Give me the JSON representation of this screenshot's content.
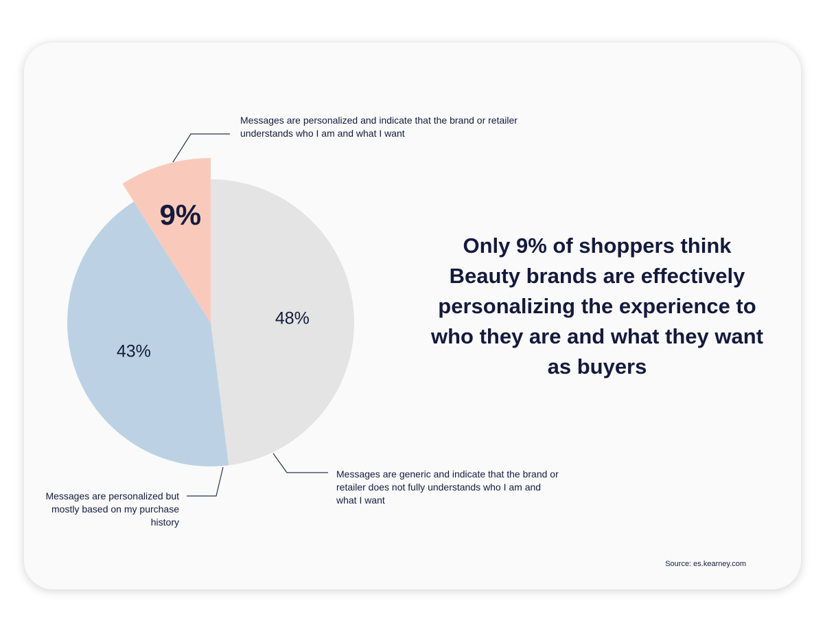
{
  "chart_data": {
    "type": "pie",
    "title": "Only 9% of shoppers think Beauty brands are effectively personalizing the experience to who they are and what they want as buyers",
    "slices": [
      {
        "label": "Messages are generic and indicate that the brand or retailer does not fully understands who I am and what I want",
        "value": 48,
        "display": "48%",
        "color": "#e4e4e4",
        "exploded": false
      },
      {
        "label": "Messages are personalized but mostly based on my purchase history",
        "value": 43,
        "display": "43%",
        "color": "#bcd2e4",
        "exploded": false
      },
      {
        "label": "Messages are personalized and indicate that the brand or retailer understands who I am and what I want",
        "value": 9,
        "display": "9%",
        "color": "#f9cabb",
        "exploded": true
      }
    ],
    "source": "Source: es.kearney.com"
  }
}
